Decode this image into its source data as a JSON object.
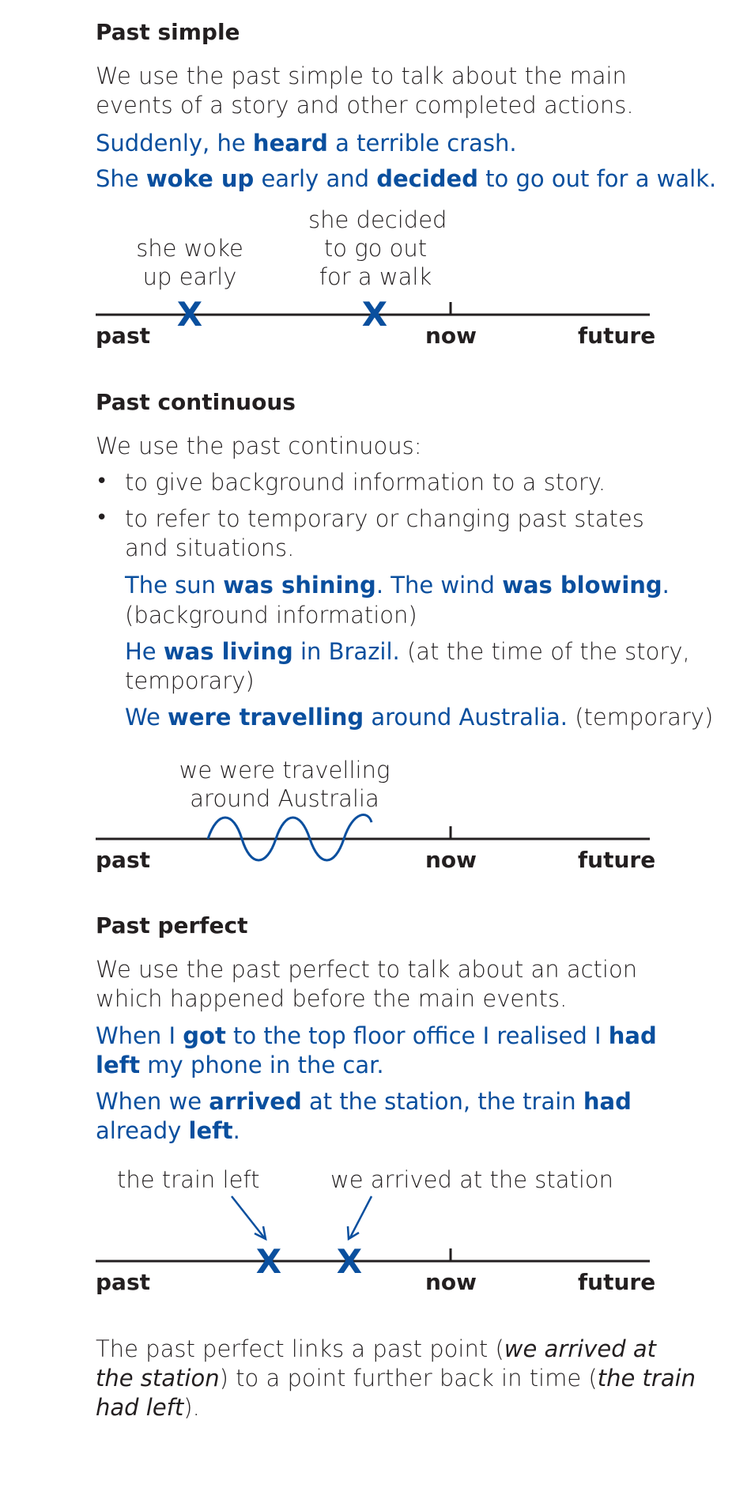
{
  "past_simple": {
    "heading": "Past simple",
    "intro_line1": "We use the past simple to talk about the main",
    "intro_line2": "events of a story and other completed actions.",
    "ex1": [
      "Suddenly, he ",
      "heard",
      " a terrible crash."
    ],
    "ex2": [
      "She ",
      "woke up",
      " early and ",
      "decided",
      " to go out for a walk."
    ],
    "timeline": {
      "label1": [
        "she woke",
        "up early"
      ],
      "label2": [
        "she decided",
        "to go out",
        "for a walk"
      ],
      "mark": "X",
      "past": "past",
      "now": "now",
      "future": "future"
    }
  },
  "past_continuous": {
    "heading": "Past continuous",
    "intro": "We use the past continuous:",
    "bullet1": "to give background information to a story.",
    "bullet2_line1": "to refer to temporary or changing past states",
    "bullet2_line2": "and situations.",
    "ex1": [
      "The sun ",
      "was shining",
      ". The wind ",
      "was blowing",
      "."
    ],
    "ex1_note": "(background information)",
    "ex2": [
      "He ",
      "was living",
      " in Brazil."
    ],
    "ex2_note1": " (at the time of the story,",
    "ex2_note2": "temporary)",
    "ex3": [
      "We ",
      "were travelling",
      " around Australia."
    ],
    "ex3_note": " (temporary)",
    "timeline": {
      "label": [
        "we were travelling",
        "around Australia"
      ],
      "past": "past",
      "now": "now",
      "future": "future"
    }
  },
  "past_perfect": {
    "heading": "Past perfect",
    "intro_line1": "We use the past perfect to talk about an action",
    "intro_line2": "which happened before the main events.",
    "ex1_line1": [
      "When I ",
      "got",
      " to the top floor office I realised I ",
      "had"
    ],
    "ex1_line2": [
      "left",
      " my phone in the car."
    ],
    "ex2_line1": [
      "When we ",
      "arrived",
      " at the station, the train ",
      "had"
    ],
    "ex2_line2": [
      "already ",
      "left",
      "."
    ],
    "timeline": {
      "label1": "the train left",
      "label2": "we arrived at the station",
      "mark": "X",
      "past": "past",
      "now": "now",
      "future": "future"
    },
    "summary_line1": [
      "The past perfect links a past point (",
      "we arrived at"
    ],
    "summary_line2": [
      "the station",
      ") to a point further back in time (",
      "the train"
    ],
    "summary_line3": [
      "had left",
      ")."
    ]
  },
  "colors": {
    "accent_blue": "#0a4f9e",
    "text": "#231f20"
  }
}
